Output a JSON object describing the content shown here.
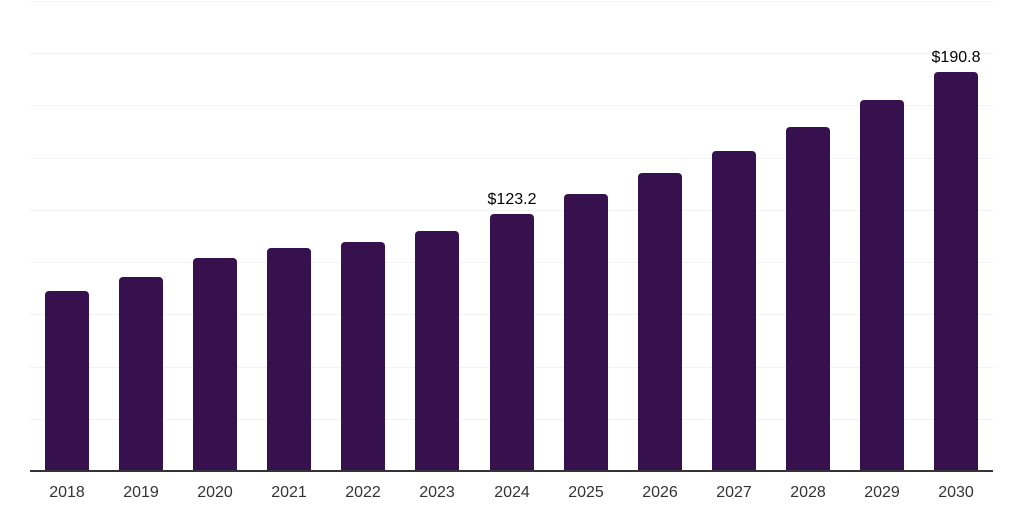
{
  "chart_data": {
    "type": "bar",
    "title": "",
    "xlabel": "",
    "ylabel": "",
    "categories": [
      "2018",
      "2019",
      "2020",
      "2021",
      "2022",
      "2023",
      "2024",
      "2025",
      "2026",
      "2027",
      "2028",
      "2029",
      "2030"
    ],
    "values": [
      86.2,
      92.9,
      101.8,
      106.9,
      109.8,
      114.9,
      123.2,
      132.7,
      142.5,
      153.3,
      164.9,
      177.4,
      190.8
    ],
    "data_labels": [
      null,
      null,
      null,
      null,
      null,
      null,
      "$123.2",
      null,
      null,
      null,
      null,
      null,
      "$190.8"
    ],
    "ylim": [
      0,
      225
    ],
    "grid_step": 25,
    "grid": true,
    "legend": false,
    "colors": {
      "bar": "#36114E",
      "gridline": "#f2f2f2",
      "axis_line": "#333333",
      "tick_label": "#333333",
      "data_label": "#000000",
      "background": "#ffffff"
    }
  }
}
